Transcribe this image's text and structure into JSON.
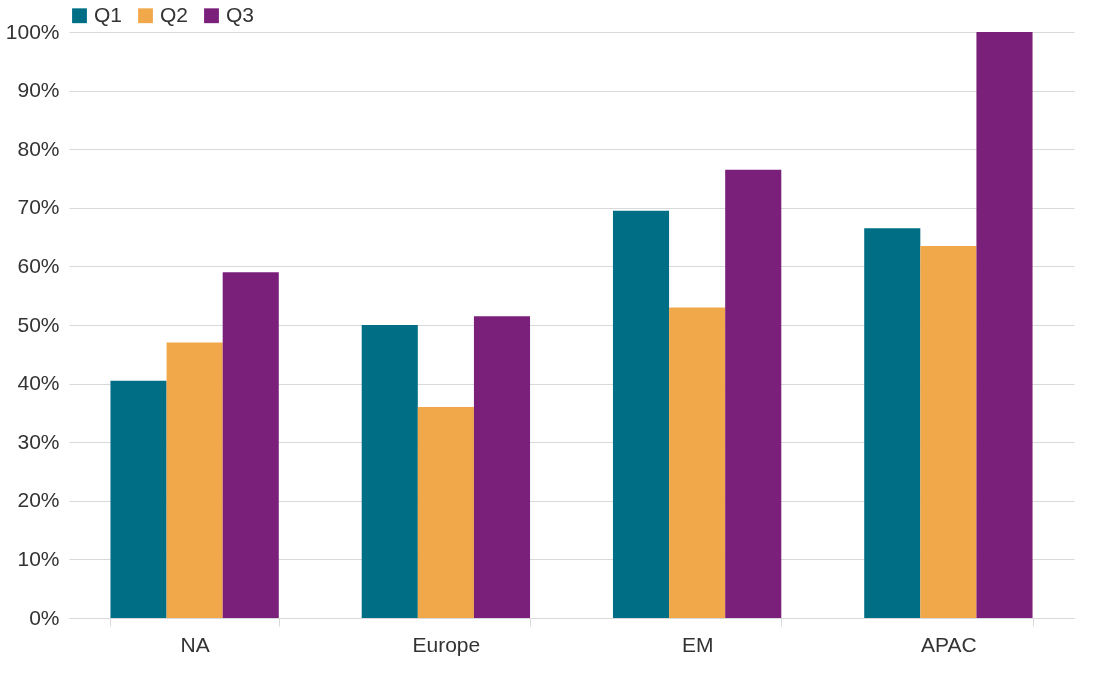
{
  "chart_data": {
    "type": "bar",
    "categories": [
      "NA",
      "Europe",
      "EM",
      "APAC"
    ],
    "series": [
      {
        "name": "Q1",
        "color": "#006f86",
        "values": [
          40.5,
          50,
          69.5,
          66.5
        ]
      },
      {
        "name": "Q2",
        "color": "#f0a84a",
        "values": [
          47,
          36,
          53,
          63.5
        ]
      },
      {
        "name": "Q3",
        "color": "#7a1f7a",
        "values": [
          59,
          51.5,
          76.5,
          100
        ]
      }
    ],
    "ylim": [
      0,
      100
    ],
    "yticks": [
      {
        "value": 0,
        "label": "0%"
      },
      {
        "value": 10,
        "label": "10%"
      },
      {
        "value": 20,
        "label": "20%"
      },
      {
        "value": 30,
        "label": "30%"
      },
      {
        "value": 40,
        "label": "40%"
      },
      {
        "value": 50,
        "label": "50%"
      },
      {
        "value": 60,
        "label": "60%"
      },
      {
        "value": 70,
        "label": "70%"
      },
      {
        "value": 80,
        "label": "80%"
      },
      {
        "value": 90,
        "label": "90%"
      },
      {
        "value": 100,
        "label": "100%"
      }
    ],
    "grid": "y",
    "legend": "top"
  }
}
